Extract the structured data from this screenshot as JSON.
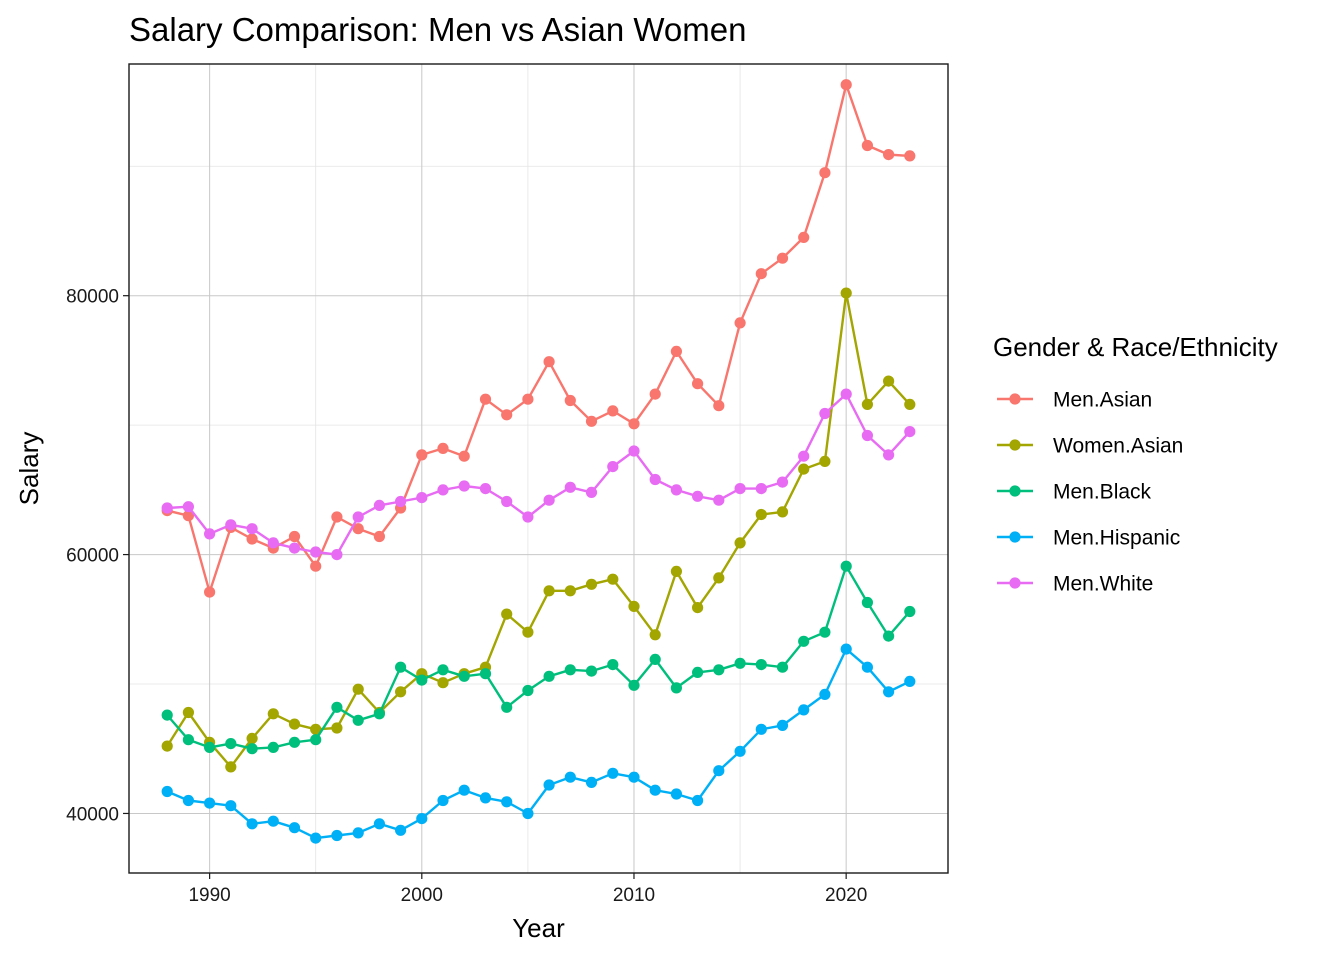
{
  "chart_data": {
    "type": "line",
    "title": "Salary Comparison: Men vs Asian Women",
    "xlabel": "Year",
    "ylabel": "Salary",
    "xlim": [
      1986.2,
      2024.8
    ],
    "ylim": [
      35400,
      97900
    ],
    "x_ticks": [
      1990,
      2000,
      2010,
      2020
    ],
    "x_tick_labels": [
      "1990",
      "2000",
      "2010",
      "2020"
    ],
    "y_ticks": [
      40000,
      60000,
      80000
    ],
    "y_tick_labels": [
      "40000",
      "60000",
      "80000"
    ],
    "x_minor": [
      1995,
      2005,
      2015
    ],
    "y_minor": [
      50000,
      70000,
      90000
    ],
    "grid": true,
    "legend": {
      "title": "Gender & Race/Ethnicity",
      "placement": "right"
    },
    "x": [
      1988,
      1989,
      1990,
      1991,
      1992,
      1993,
      1994,
      1995,
      1996,
      1997,
      1998,
      1999,
      2000,
      2001,
      2002,
      2003,
      2004,
      2005,
      2006,
      2007,
      2008,
      2009,
      2010,
      2011,
      2012,
      2013,
      2014,
      2015,
      2016,
      2017,
      2018,
      2019,
      2020,
      2021,
      2022,
      2023
    ],
    "series": [
      {
        "name": "Men.Asian",
        "color": "#F8766D",
        "values": [
          63400,
          63000,
          57100,
          62100,
          61200,
          60500,
          61400,
          59100,
          62900,
          62000,
          61400,
          63600,
          67700,
          68200,
          67600,
          72000,
          70800,
          72000,
          74900,
          71900,
          70300,
          71100,
          70100,
          72400,
          75700,
          73200,
          71500,
          77900,
          81700,
          82900,
          84500,
          89500,
          96300,
          91600,
          90900,
          90800
        ]
      },
      {
        "name": "Women.Asian",
        "color": "#A3A500",
        "values": [
          45200,
          47800,
          45500,
          43600,
          45800,
          47700,
          46900,
          46500,
          46600,
          49600,
          47800,
          49400,
          50800,
          50100,
          50800,
          51300,
          55400,
          54000,
          57200,
          57200,
          57700,
          58100,
          56000,
          53800,
          58700,
          55900,
          58200,
          60900,
          63100,
          63300,
          66600,
          67200,
          80200,
          71600,
          73400,
          71600
        ]
      },
      {
        "name": "Men.Black",
        "color": "#00BF7D",
        "values": [
          47600,
          45700,
          45100,
          45400,
          45000,
          45100,
          45500,
          45700,
          48200,
          47200,
          47700,
          51300,
          50300,
          51100,
          50600,
          50800,
          48200,
          49500,
          50600,
          51100,
          51000,
          51500,
          49900,
          51900,
          49700,
          50900,
          51100,
          51600,
          51500,
          51300,
          53300,
          54000,
          59100,
          56300,
          53700,
          55600
        ]
      },
      {
        "name": "Men.Hispanic",
        "color": "#00B0F6",
        "values": [
          41700,
          41000,
          40800,
          40600,
          39200,
          39400,
          38900,
          38100,
          38300,
          38500,
          39200,
          38700,
          39600,
          41000,
          41800,
          41200,
          40900,
          40000,
          42200,
          42800,
          42400,
          43100,
          42800,
          41800,
          41500,
          41000,
          43300,
          44800,
          46500,
          46800,
          48000,
          49200,
          52700,
          51300,
          49400,
          50200
        ]
      },
      {
        "name": "Men.White",
        "color": "#E76BF3",
        "values": [
          63600,
          63700,
          61600,
          62300,
          62000,
          60900,
          60500,
          60200,
          60000,
          62900,
          63800,
          64100,
          64400,
          65000,
          65300,
          65100,
          64100,
          62900,
          64200,
          65200,
          64800,
          66800,
          68000,
          65800,
          65000,
          64500,
          64200,
          65100,
          65100,
          65600,
          67600,
          70900,
          72400,
          69200,
          67700,
          69500
        ]
      }
    ]
  }
}
